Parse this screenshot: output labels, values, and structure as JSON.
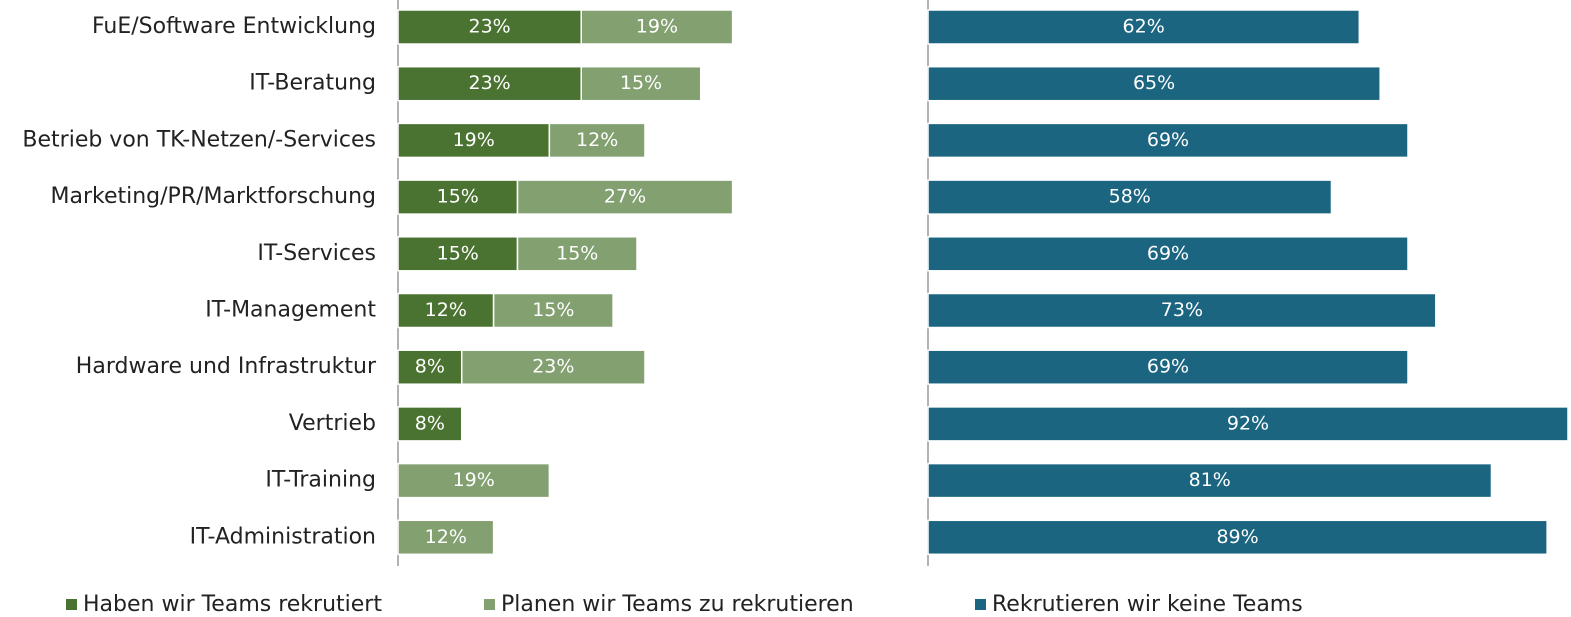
{
  "chart_data": [
    {
      "type": "bar",
      "orientation": "horizontal",
      "stacked": true,
      "categories": [
        "FuE/Software Entwicklung",
        "IT-Beratung",
        "Betrieb von TK-Netzen/-Services",
        "Marketing/PR/Marktforschung",
        "IT-Services",
        "IT-Management",
        "Hardware und Infrastruktur",
        "Vertrieb",
        "IT-Training",
        "IT-Administration"
      ],
      "xlim": [
        0,
        60
      ],
      "series": [
        {
          "name": "Haben wir Teams rekrutiert",
          "color": "#4a7230",
          "values": [
            23,
            23,
            19,
            15,
            15,
            12,
            8,
            8,
            null,
            null
          ],
          "value_labels": [
            "23%",
            "23%",
            "19%",
            "15%",
            "15%",
            "12%",
            "8%",
            "8%",
            null,
            null
          ]
        },
        {
          "name": "Planen wir Teams zu rekrutieren",
          "color": "#82a070",
          "values": [
            19,
            15,
            12,
            27,
            15,
            15,
            23,
            null,
            19,
            12
          ],
          "value_labels": [
            "19%",
            "15%",
            "12%",
            "27%",
            "15%",
            "15%",
            "23%",
            null,
            "19%",
            "12%"
          ]
        }
      ]
    },
    {
      "type": "bar",
      "orientation": "horizontal",
      "xlim": [
        0,
        92
      ],
      "series": [
        {
          "name": "Rekrutieren wir keine Teams",
          "color": "#1b6580",
          "values": [
            62,
            65,
            69,
            58,
            69,
            73,
            69,
            92,
            81,
            89
          ],
          "value_labels": [
            "62%",
            "65%",
            "69%",
            "58%",
            "69%",
            "73%",
            "69%",
            "92%",
            "81%",
            "89%"
          ]
        }
      ]
    }
  ]
}
